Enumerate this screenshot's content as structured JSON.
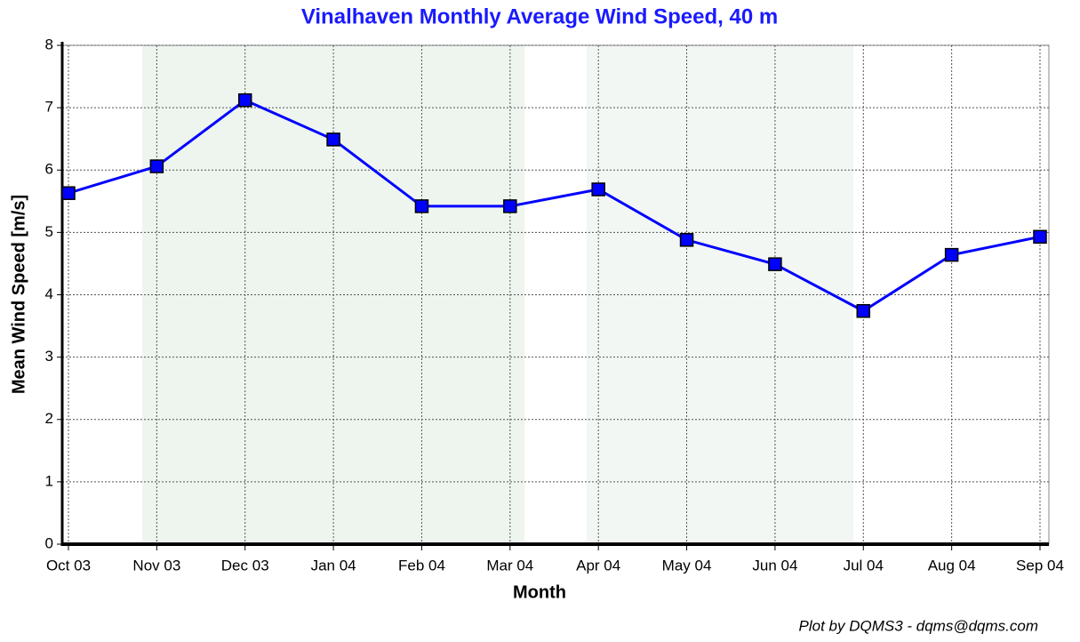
{
  "chart_data": {
    "type": "line",
    "title": "Vinalhaven Monthly Average Wind Speed, 40 m",
    "x_label": "Month",
    "y_label": "Mean Wind Speed [m/s]",
    "credit": "Plot by DQMS3 - dqms@dqms.com",
    "categories": [
      "Oct 03",
      "Nov 03",
      "Dec 03",
      "Jan 04",
      "Feb 04",
      "Mar 04",
      "Apr 04",
      "May 04",
      "Jun 04",
      "Jul 04",
      "Aug 04",
      "Sep 04"
    ],
    "values": [
      5.63,
      6.06,
      7.12,
      6.49,
      5.42,
      5.42,
      5.69,
      4.88,
      4.49,
      3.74,
      4.64,
      4.93
    ],
    "color": "#0000ff",
    "ylim": [
      0,
      8
    ],
    "yticks": [
      0,
      1,
      2,
      3,
      4,
      5,
      6,
      7,
      8
    ],
    "grid": true
  }
}
